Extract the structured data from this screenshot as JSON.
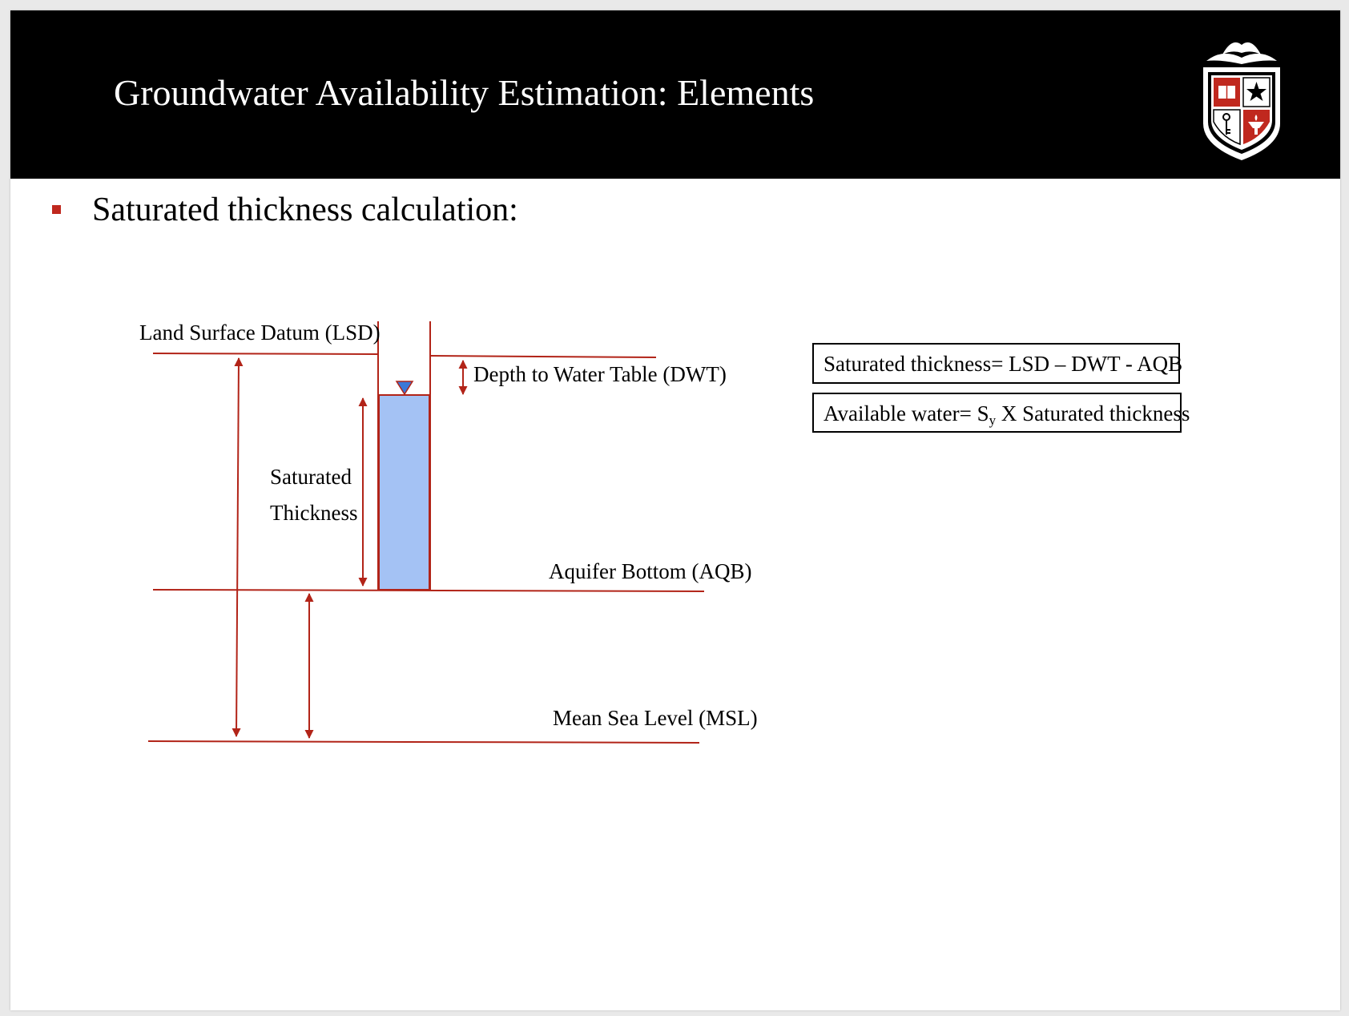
{
  "header": {
    "title": "Groundwater Availability Estimation: Elements",
    "logo": "university-shield-logo"
  },
  "content": {
    "bullet": "Saturated thickness calculation:"
  },
  "diagram": {
    "labels": {
      "lsd": "Land Surface Datum (LSD)",
      "dwt": "Depth to Water Table (DWT)",
      "saturated_line1": "Saturated",
      "saturated_line2": "Thickness",
      "aqb": "Aquifer Bottom (AQB)",
      "msl": "Mean Sea Level (MSL)"
    },
    "colors": {
      "line": "#b22418",
      "water": "#a4c2f4",
      "water_table_marker": "#3c78d8"
    }
  },
  "equations": {
    "saturated": "Saturated thickness= LSD – DWT - AQB",
    "available_prefix": "Available water= S",
    "available_sub": "y",
    "available_suffix": " X Saturated thickness"
  }
}
